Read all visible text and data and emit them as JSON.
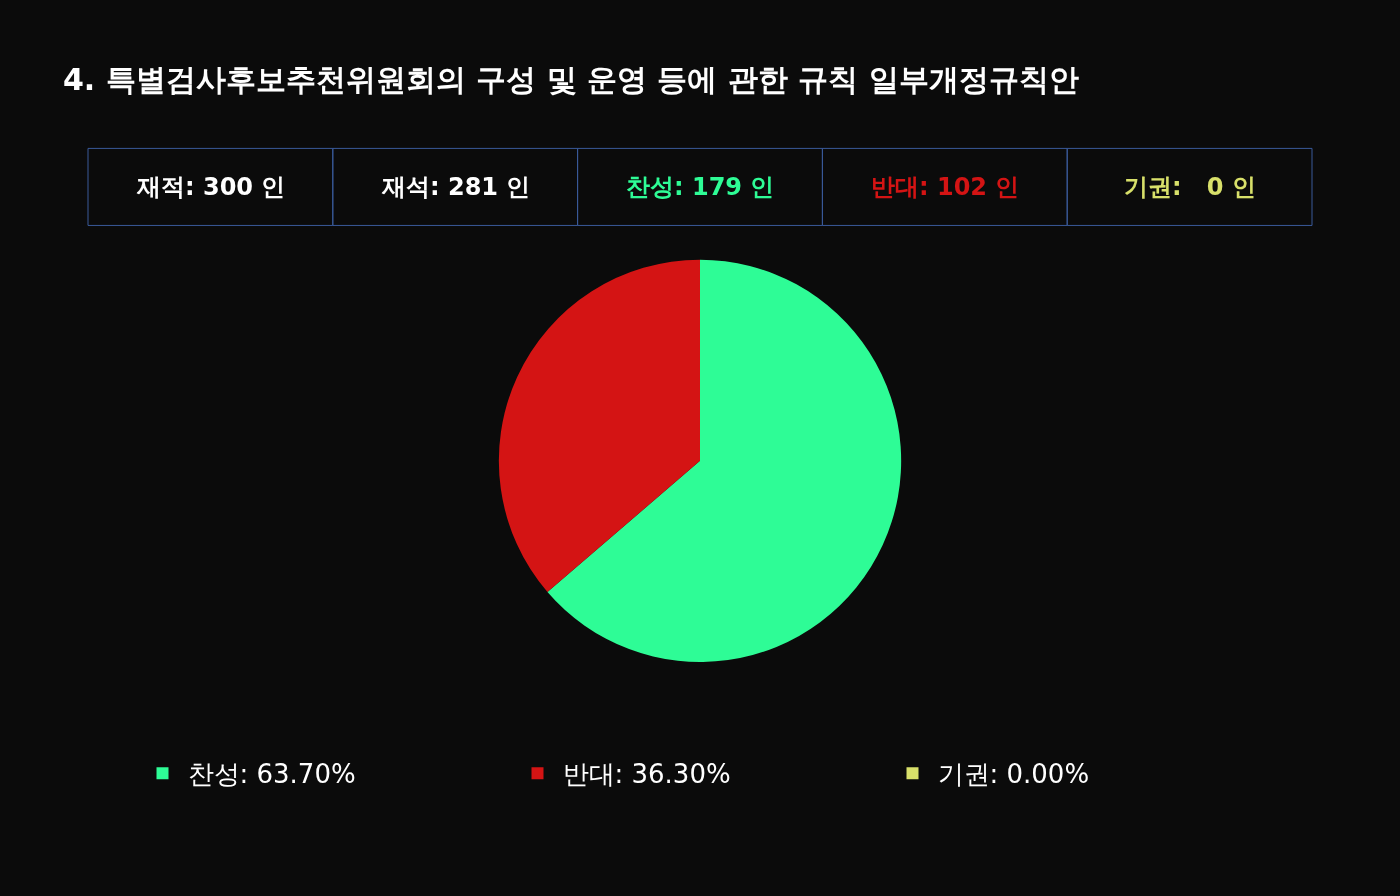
{
  "chart_data": {
    "type": "pie",
    "title": "4. 특별검사후보추천위원회의 구성 및 운영 등에 관한 규칙 일부개정규칙안",
    "annotations": [
      "재적: 300 인",
      "재석: 281 인",
      "찬성: 179 인",
      "반대: 102 인",
      "기권:   0 인"
    ],
    "categories": [
      "찬성",
      "반대",
      "기권"
    ],
    "values": [
      63.7,
      36.3,
      0
    ],
    "value_labels": [
      "63.70%",
      "36.30%",
      "0.00%"
    ],
    "colors": [
      "#2efc96",
      "#d41414",
      "#d8e06a"
    ],
    "legend": "bottom"
  }
}
